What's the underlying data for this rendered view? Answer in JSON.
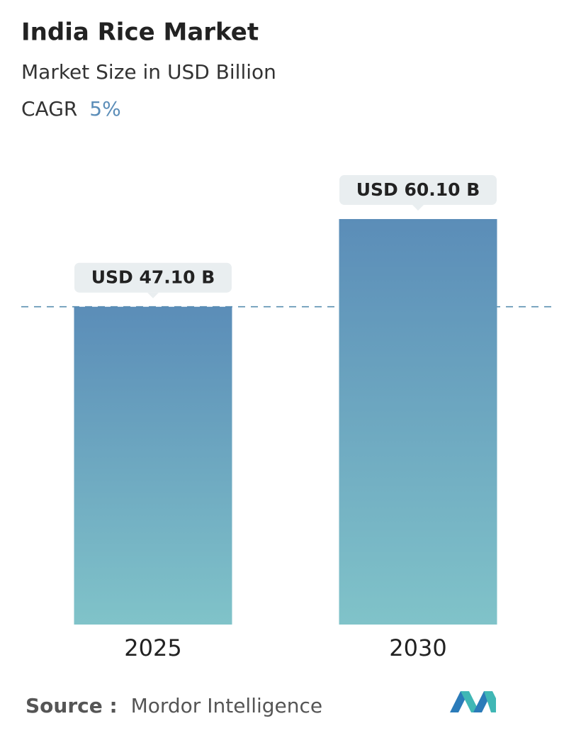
{
  "chart_data": {
    "type": "bar",
    "title": "India Rice Market",
    "subtitle": "Market Size in USD Billion",
    "cagr_label": "CAGR",
    "cagr_value": "5%",
    "categories": [
      "2025",
      "2030"
    ],
    "values": [
      47.1,
      60.1
    ],
    "value_labels": [
      "USD 47.10 B",
      "USD 60.10 B"
    ],
    "color_top": "#5b8db8",
    "color_bottom": "#80c3c9",
    "source_label": "Source :",
    "source": "Mordor Intelligence"
  }
}
